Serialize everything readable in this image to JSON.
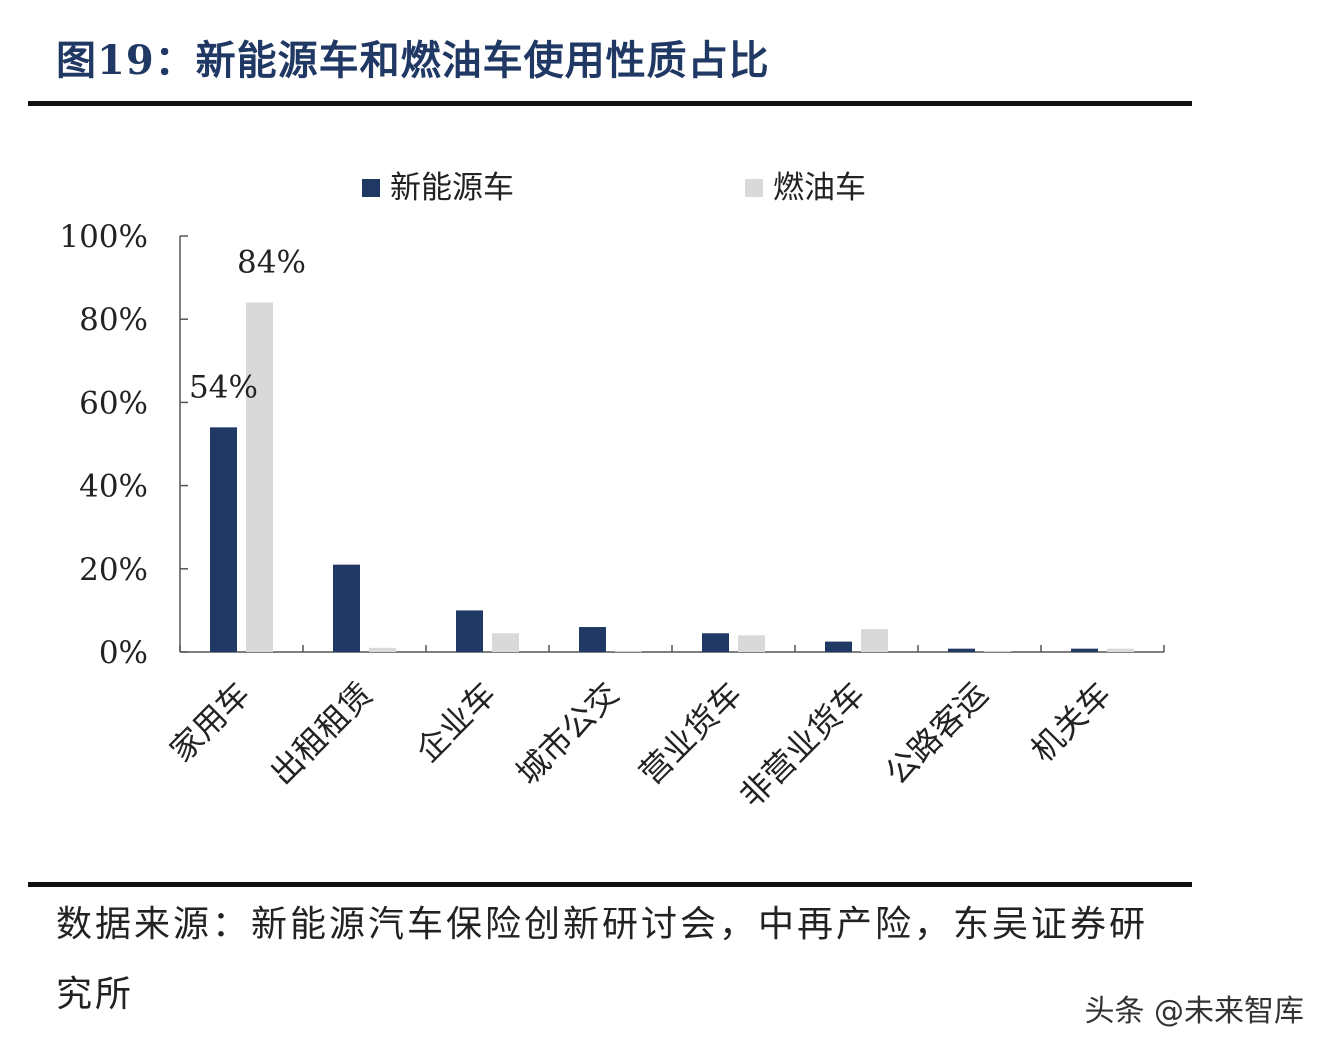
{
  "title": "图19：新能源车和燃油车使用性质占比",
  "source": "数据来源：新能源汽车保险创新研讨会，中再产险，东吴证券研究所",
  "watermark": "头条 @未来智库",
  "colors": {
    "nev": "#1f3864",
    "fuel": "#d9d9d9",
    "title": "#1f3864"
  },
  "chart_data": {
    "type": "bar",
    "categories": [
      "家用车",
      "出租租赁",
      "企业车",
      "城市公交",
      "营业货车",
      "非营业货车",
      "公路客运",
      "机关车"
    ],
    "series": [
      {
        "name": "新能源车",
        "values": [
          54,
          21,
          10,
          6,
          4.5,
          2.5,
          0.8,
          0.8
        ],
        "labels": [
          "54%",
          "",
          "",
          "",
          "",
          "",
          "",
          ""
        ]
      },
      {
        "name": "燃油车",
        "values": [
          84,
          1,
          4.5,
          0.2,
          4,
          5.5,
          0.2,
          0.8
        ],
        "labels": [
          "84%",
          "",
          "",
          "",
          "",
          "",
          "",
          ""
        ]
      }
    ],
    "yticks": [
      "0%",
      "20%",
      "40%",
      "60%",
      "80%",
      "100%"
    ],
    "ylim": [
      0,
      100
    ],
    "legend": "top",
    "grid": false
  }
}
